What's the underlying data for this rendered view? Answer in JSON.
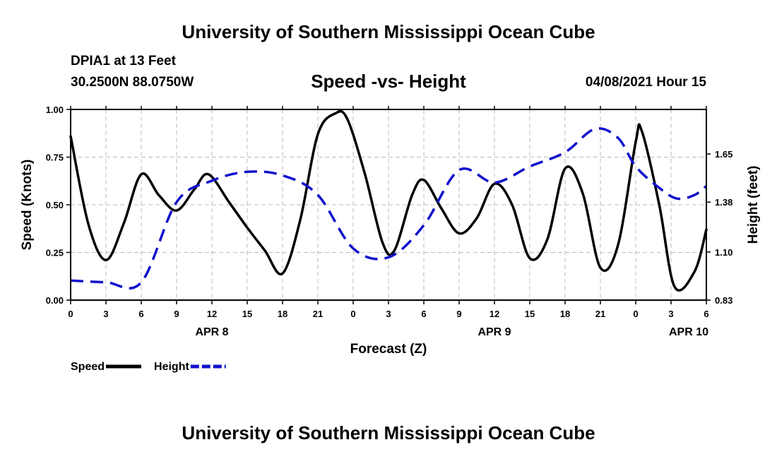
{
  "header": {
    "title": "University of Southern Mississippi Ocean Cube",
    "station": "DPIA1 at 13 Feet",
    "coords": "30.2500N  88.0750W",
    "subtitle": "Speed -vs- Height",
    "datetime": "04/08/2021 Hour 15"
  },
  "footer": {
    "title": "University of Southern Mississippi Ocean Cube"
  },
  "chart_data": {
    "type": "line",
    "title": "Speed -vs- Height",
    "xlabel": "Forecast (Z)",
    "ylabel": "Speed (Knots)",
    "y2label": "Height (feet)",
    "xlim": [
      0,
      54
    ],
    "ylim": [
      0,
      1
    ],
    "y2lim": [
      0.83,
      1.9
    ],
    "x_ticks": [
      0,
      3,
      6,
      9,
      12,
      15,
      18,
      21,
      24,
      27,
      30,
      33,
      36,
      39,
      42,
      45,
      48,
      51,
      54
    ],
    "x_tick_labels": [
      "0",
      "3",
      "6",
      "9",
      "12",
      "15",
      "18",
      "21",
      "0",
      "3",
      "6",
      "9",
      "12",
      "15",
      "18",
      "21",
      "0",
      "3",
      "6"
    ],
    "y_ticks": [
      0,
      0.25,
      0.5,
      0.75,
      1.0
    ],
    "y_tick_labels": [
      "0.00",
      "0.25",
      "0.50",
      "0.75",
      "1.00"
    ],
    "y2_ticks": [
      0.83,
      1.1,
      1.38,
      1.65
    ],
    "y2_tick_labels": [
      "0.83",
      "1.10",
      "1.38",
      "1.65"
    ],
    "date_labels": [
      {
        "x": 12,
        "label": "APR 8"
      },
      {
        "x": 36,
        "label": "APR 9"
      },
      {
        "x": 52.5,
        "label": "APR 10"
      }
    ],
    "grid": true,
    "legend": [
      {
        "name": "Speed",
        "color": "#000000",
        "style": "solid"
      },
      {
        "name": "Height",
        "color": "#1111cc",
        "style": "dashed"
      }
    ],
    "series": [
      {
        "name": "Speed",
        "axis": "left",
        "color": "#000000",
        "x": [
          0,
          1.5,
          3,
          4.5,
          6,
          7.5,
          9,
          10.5,
          11.7,
          13.5,
          15,
          16.5,
          18,
          19.5,
          21,
          22.5,
          23.5,
          25,
          26.5,
          27.5,
          29,
          30,
          31.5,
          33,
          34.5,
          36,
          37.5,
          39,
          40.5,
          42,
          43.5,
          45,
          46.5,
          48,
          48.5,
          50,
          51.3,
          53,
          54
        ],
        "values": [
          0.86,
          0.4,
          0.21,
          0.4,
          0.66,
          0.55,
          0.47,
          0.58,
          0.66,
          0.51,
          0.38,
          0.26,
          0.14,
          0.42,
          0.87,
          0.98,
          0.95,
          0.66,
          0.3,
          0.26,
          0.55,
          0.63,
          0.48,
          0.35,
          0.43,
          0.61,
          0.5,
          0.22,
          0.32,
          0.69,
          0.56,
          0.17,
          0.29,
          0.83,
          0.89,
          0.5,
          0.07,
          0.15,
          0.37
        ]
      },
      {
        "name": "Height",
        "axis": "right",
        "color": "#1111cc",
        "x": [
          0,
          3,
          6,
          9,
          12,
          15,
          18,
          21,
          24,
          27,
          30,
          33,
          36,
          39,
          42,
          44.5,
          46.5,
          48,
          50,
          51.5,
          53,
          54
        ],
        "values": [
          0.94,
          0.93,
          0.93,
          1.38,
          1.5,
          1.55,
          1.53,
          1.42,
          1.12,
          1.07,
          1.25,
          1.56,
          1.49,
          1.58,
          1.66,
          1.79,
          1.74,
          1.58,
          1.46,
          1.4,
          1.42,
          1.47
        ]
      }
    ]
  }
}
